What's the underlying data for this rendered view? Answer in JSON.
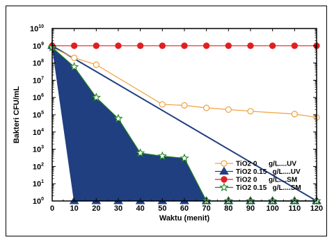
{
  "chart_data": {
    "type": "line",
    "xlabel": "Waktu  (menit)",
    "ylabel": "Bakteri CFU/mL",
    "x_ticks": [
      "0",
      "10",
      "20",
      "30",
      "40",
      "50",
      "60",
      "70",
      "80",
      "90",
      "100",
      "110",
      "120"
    ],
    "y_tick_base": "10",
    "y_tick_exponents": [
      "0",
      "1",
      "2",
      "3",
      "4",
      "5",
      "6",
      "7",
      "8",
      "9",
      "10"
    ],
    "xlim": [
      0,
      120
    ],
    "ylim": [
      1,
      10000000000
    ],
    "y_scale": "log",
    "grid": false,
    "legend_position": "bottom-right",
    "series": [
      {
        "name": "TiO2 0      g/L....UV",
        "color": "#f0a040",
        "marker": "circle-open",
        "points": [
          [
            0,
            800000000
          ],
          [
            10,
            200000000
          ],
          [
            20,
            80000000
          ],
          [
            50,
            400000
          ],
          [
            60,
            350000
          ],
          [
            70,
            250000
          ],
          [
            80,
            200000
          ],
          [
            90,
            160000
          ],
          [
            110,
            110000
          ],
          [
            120,
            70000
          ]
        ]
      },
      {
        "name": "TiO2 0.15   g/L....UV",
        "color": "#1f3f80",
        "marker": "triangle-filled",
        "points": [
          [
            0,
            1000000000
          ],
          [
            10,
            1
          ],
          [
            20,
            1
          ],
          [
            30,
            1
          ],
          [
            40,
            1
          ],
          [
            50,
            1
          ],
          [
            60,
            1
          ],
          [
            70,
            1
          ],
          [
            80,
            1
          ],
          [
            90,
            1
          ],
          [
            100,
            1
          ],
          [
            110,
            1
          ],
          [
            120,
            1
          ]
        ]
      },
      {
        "name": "TiO2 0      g/L....SM",
        "color": "#e02020",
        "marker": "circle-filled",
        "points": [
          [
            0,
            1000000000
          ],
          [
            10,
            1000000000
          ],
          [
            20,
            1000000000
          ],
          [
            30,
            1000000000
          ],
          [
            40,
            1000000000
          ],
          [
            50,
            1000000000
          ],
          [
            60,
            1000000000
          ],
          [
            70,
            1000000000
          ],
          [
            80,
            1000000000
          ],
          [
            90,
            1000000000
          ],
          [
            100,
            1000000000
          ],
          [
            110,
            1000000000
          ],
          [
            120,
            1000000000
          ]
        ]
      },
      {
        "name": "TiO2 0.15   g/L....SM",
        "color": "#208020",
        "marker": "star-open",
        "points": [
          [
            0,
            800000000
          ],
          [
            10,
            60000000
          ],
          [
            20,
            1000000
          ],
          [
            30,
            60000
          ],
          [
            40,
            600
          ],
          [
            50,
            400
          ],
          [
            60,
            300
          ],
          [
            70,
            1
          ],
          [
            80,
            1
          ],
          [
            90,
            1
          ],
          [
            100,
            1
          ],
          [
            110,
            1
          ],
          [
            120,
            1
          ]
        ]
      }
    ],
    "reference_line": {
      "color": "#1f3f80",
      "points": [
        [
          0,
          1000000000
        ],
        [
          120,
          1
        ]
      ]
    }
  }
}
